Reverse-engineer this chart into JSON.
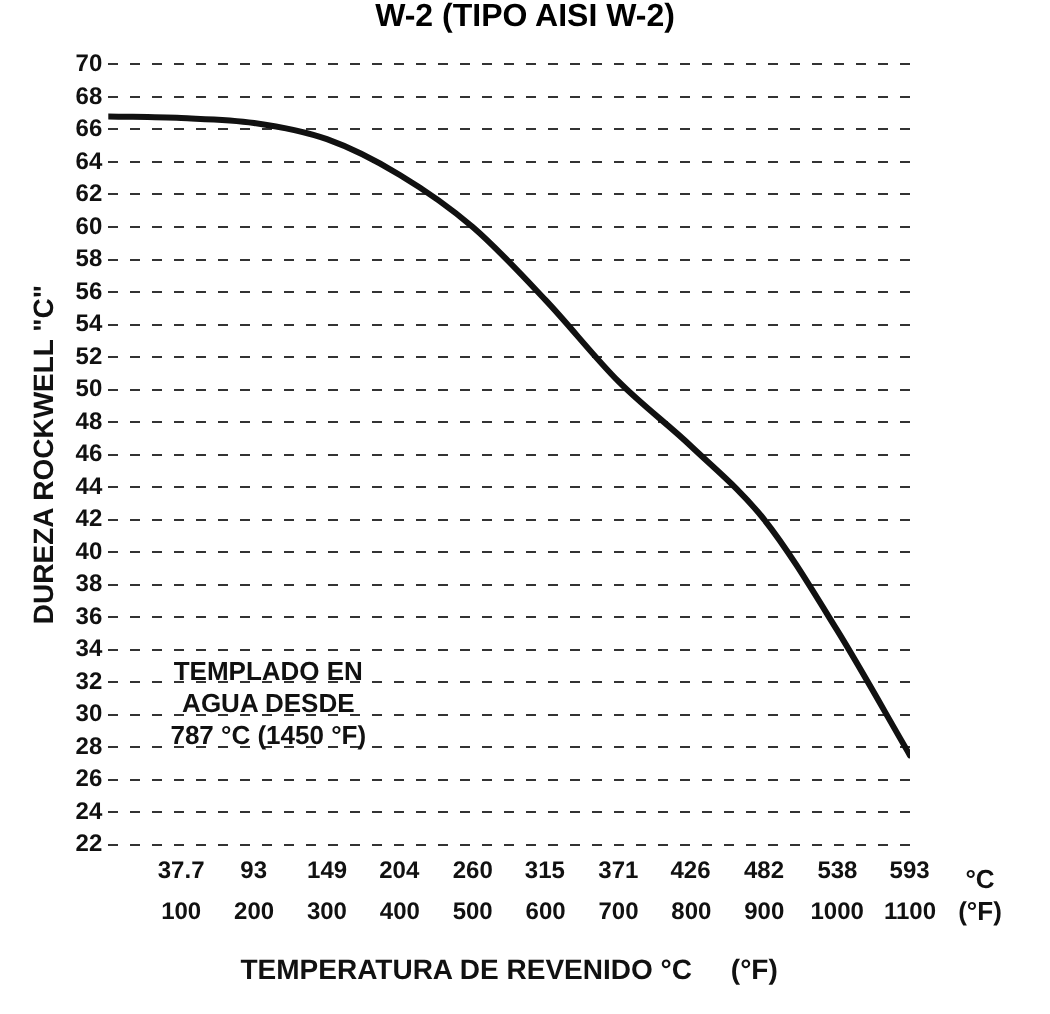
{
  "chart_data": {
    "type": "line",
    "title": "W-2 (TIPO AISI W-2)",
    "xlabel": "TEMPERATURA DE REVENIDO °C     (°F)",
    "ylabel": "DUREZA ROCKWELL \"C\"",
    "x": [
      0,
      100,
      200,
      300,
      400,
      500,
      600,
      700,
      800,
      900,
      1000,
      1100
    ],
    "series": [
      {
        "color": "#111111",
        "values": [
          66.8,
          66.7,
          66.4,
          65.4,
          63.2,
          60.0,
          55.5,
          50.5,
          46.5,
          42.0,
          35.2,
          27.5
        ]
      }
    ],
    "xlim": [
      0,
      1100
    ],
    "xticks": [
      100,
      200,
      300,
      400,
      500,
      600,
      700,
      800,
      900,
      1000,
      1100
    ],
    "x2lim": [
      -17.8,
      593.3
    ],
    "x2ticks": [
      37.7,
      93,
      149,
      204,
      260,
      315,
      371,
      426,
      482,
      538,
      593
    ],
    "ylim": [
      22,
      70
    ],
    "yticks": [
      22,
      24,
      26,
      28,
      30,
      32,
      34,
      36,
      38,
      40,
      42,
      44,
      46,
      48,
      50,
      52,
      54,
      56,
      58,
      60,
      62,
      64,
      66,
      68,
      70
    ],
    "grid": "y",
    "legend": false,
    "marker": "none",
    "line_style": "solid",
    "annotations": [
      "TEMPLADO EN\nAGUA DESDE\n787 °C (1450 °F)",
      "°C\n(°F)"
    ]
  }
}
